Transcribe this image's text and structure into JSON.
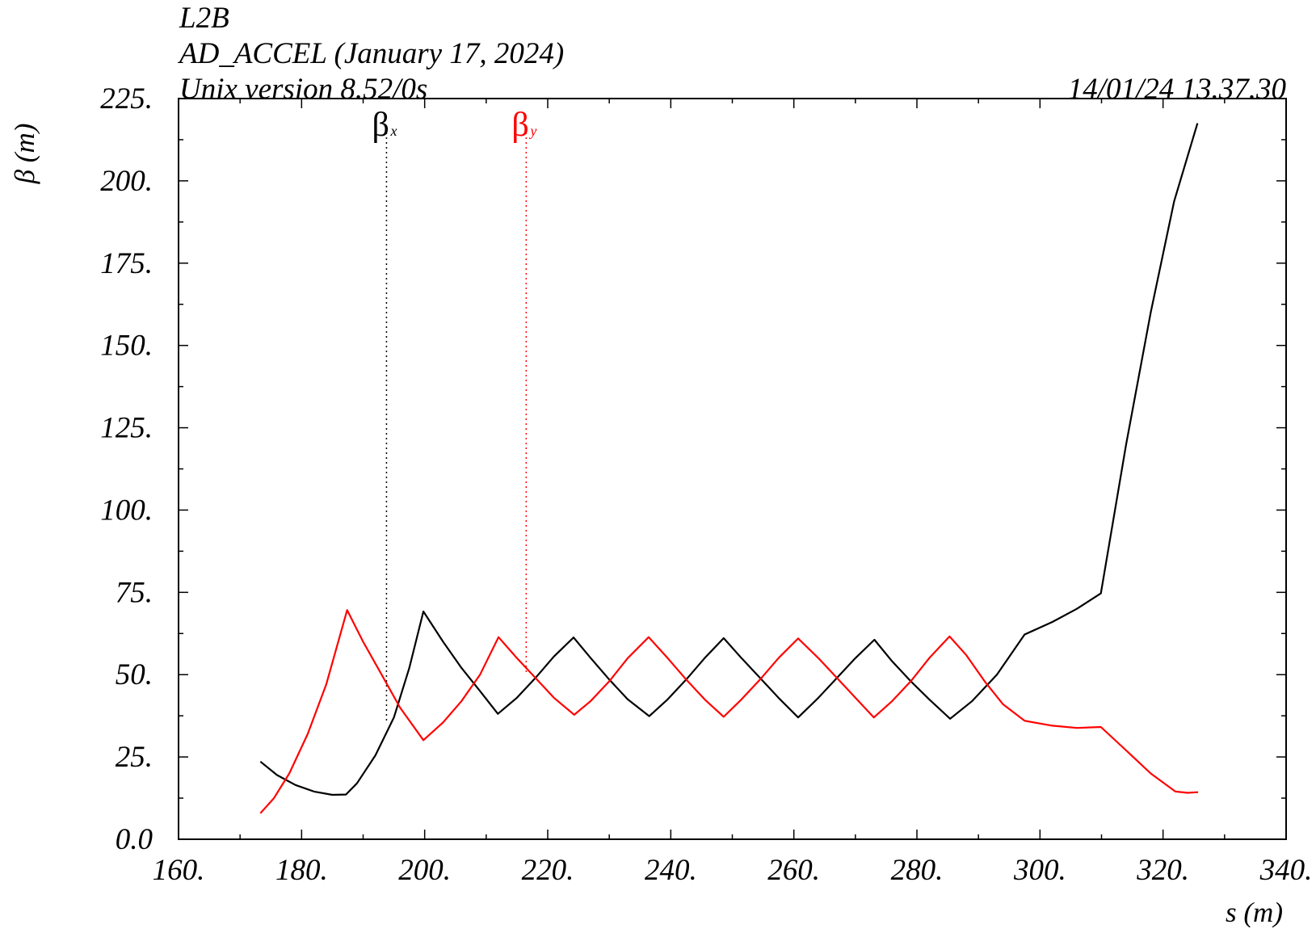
{
  "header": {
    "line1": "L2B",
    "line2": "AD_ACCEL (January 17, 2024)",
    "line3": "Unix version 8.52/0s",
    "timestamp": "14/01/24  13.37.30"
  },
  "chart_data": {
    "type": "line",
    "xlabel": "s (m)",
    "ylabel": "β (m)",
    "xlim": [
      160,
      340
    ],
    "ylim": [
      0,
      225
    ],
    "x_ticks": [
      160,
      180,
      200,
      220,
      240,
      260,
      280,
      300,
      320,
      340
    ],
    "x_tick_labels": [
      "160.",
      "180.",
      "200.",
      "220.",
      "240.",
      "260.",
      "280.",
      "300.",
      "320.",
      "340."
    ],
    "y_ticks": [
      0,
      25,
      50,
      75,
      100,
      125,
      150,
      175,
      200,
      225
    ],
    "y_tick_labels": [
      "0.0",
      "25.",
      "50.",
      "75.",
      "100.",
      "125.",
      "150.",
      "175.",
      "200.",
      "225."
    ],
    "grid": false,
    "legend": [
      {
        "symbol": "β",
        "sub": "x",
        "color": "#000000",
        "marker_x": 193.8
      },
      {
        "symbol": "β",
        "sub": "y",
        "color": "#ff0000",
        "marker_x": 216.5
      }
    ],
    "series": [
      {
        "name": "βx",
        "color": "#000000",
        "points": [
          [
            173.3,
            23.6
          ],
          [
            176,
            19.5
          ],
          [
            179,
            16.5
          ],
          [
            182,
            14.5
          ],
          [
            185,
            13.5
          ],
          [
            187.2,
            13.6
          ],
          [
            189,
            17
          ],
          [
            192,
            25.5
          ],
          [
            195,
            37
          ],
          [
            197.5,
            52
          ],
          [
            199.8,
            69.2
          ],
          [
            203,
            60
          ],
          [
            206,
            52
          ],
          [
            209,
            45
          ],
          [
            211.9,
            38.1
          ],
          [
            215,
            43
          ],
          [
            218,
            49
          ],
          [
            221,
            55.5
          ],
          [
            224.2,
            61.3
          ],
          [
            227,
            55
          ],
          [
            230,
            48.5
          ],
          [
            233,
            42.5
          ],
          [
            236.5,
            37.4
          ],
          [
            239.5,
            42.5
          ],
          [
            242.5,
            48.5
          ],
          [
            245.5,
            55
          ],
          [
            248.6,
            61.1
          ],
          [
            251.5,
            55
          ],
          [
            254.5,
            49
          ],
          [
            257.5,
            43
          ],
          [
            260.7,
            37.0
          ],
          [
            264,
            43
          ],
          [
            267,
            49
          ],
          [
            270,
            55
          ],
          [
            273.1,
            60.6
          ],
          [
            276,
            54
          ],
          [
            279,
            48
          ],
          [
            282,
            42.5
          ],
          [
            285.4,
            36.6
          ],
          [
            289,
            42
          ],
          [
            293,
            50
          ],
          [
            297.5,
            62.2
          ],
          [
            302,
            66
          ],
          [
            306,
            70
          ],
          [
            309.9,
            74.7
          ],
          [
            314,
            120
          ],
          [
            318,
            160
          ],
          [
            321.8,
            193.8
          ],
          [
            325.6,
            217.5
          ]
        ]
      },
      {
        "name": "βy",
        "color": "#ff0000",
        "points": [
          [
            173.3,
            7.9
          ],
          [
            175.5,
            12.5
          ],
          [
            178,
            20
          ],
          [
            181,
            32
          ],
          [
            184,
            47
          ],
          [
            187.4,
            69.6
          ],
          [
            190,
            60
          ],
          [
            193,
            50
          ],
          [
            196,
            40
          ],
          [
            199.8,
            30.1
          ],
          [
            203,
            35.5
          ],
          [
            206,
            42
          ],
          [
            209,
            50
          ],
          [
            212,
            61.4
          ],
          [
            215,
            55
          ],
          [
            218,
            49
          ],
          [
            221,
            43
          ],
          [
            224.3,
            37.8
          ],
          [
            227,
            42
          ],
          [
            230,
            48
          ],
          [
            233,
            55
          ],
          [
            236.4,
            61.4
          ],
          [
            239.5,
            55
          ],
          [
            242.5,
            48.5
          ],
          [
            245.5,
            42.5
          ],
          [
            248.6,
            37.2
          ],
          [
            251.5,
            42.5
          ],
          [
            254.5,
            48.5
          ],
          [
            257.5,
            55
          ],
          [
            260.7,
            61.0
          ],
          [
            264,
            55
          ],
          [
            267,
            49
          ],
          [
            270,
            43
          ],
          [
            273,
            37.0
          ],
          [
            276,
            42
          ],
          [
            279,
            48
          ],
          [
            282,
            55
          ],
          [
            285.3,
            61.6
          ],
          [
            288,
            56
          ],
          [
            291,
            48
          ],
          [
            294,
            41
          ],
          [
            297.5,
            36
          ],
          [
            302,
            34.5
          ],
          [
            306,
            33.8
          ],
          [
            309.9,
            34.1
          ],
          [
            314,
            27
          ],
          [
            318,
            20
          ],
          [
            322,
            14.5
          ],
          [
            324,
            14.1
          ],
          [
            325.7,
            14.3
          ]
        ]
      }
    ]
  }
}
